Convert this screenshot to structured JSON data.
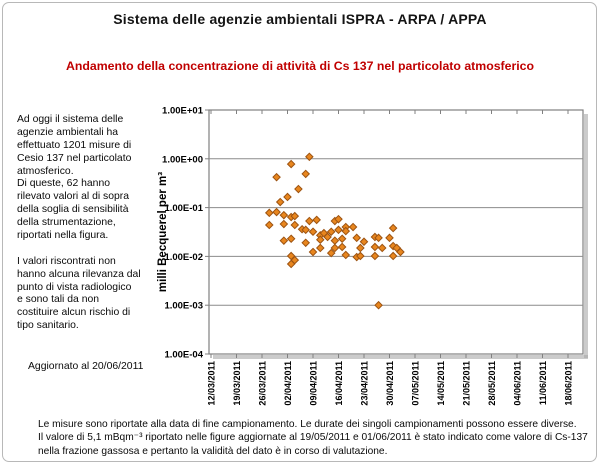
{
  "header": {
    "title": "Sistema delle agenzie ambientali ISPRA - ARPA / APPA",
    "subtitle": "Andamento della concentrazione di attività di Cs 137 nel particolato atmosferico",
    "subtitle_color": "#C00000"
  },
  "left_panel": {
    "body": "Ad oggi il sistema delle\nagenzie ambientali  ha\neffettuato 1201 misure di\nCesio 137 nel particolato\natmosferico.\nDi queste, 62 hanno\nrilevato valori al di sopra\ndella soglia di sensibilità\ndella strumentazione,\nriportati nella figura.\n\nI valori riscontrati  non\nhanno alcuna rilevanza dal\npunto di vista radiologico\ne sono tali da non\ncostituire alcun rischio di\ntipo sanitario.",
    "updated": "Aggiornato al 20/06/2011"
  },
  "footer": {
    "notes": "Le misure sono riportate alla data di fine campionamento. Le durate dei singoli campionamenti possono essere diverse.\nIl valore di 5,1 mBqm⁻³ riportato nelle figure aggiornate al 19/05/2011  e 01/06/2011  è stato indicato come valore di Cs-137\nnella frazione gassosa e pertanto la validità del dato è in corso di valutazione."
  },
  "chart_data": {
    "type": "scatter",
    "title": "",
    "xlabel": "",
    "ylabel": "milli Becquerel per m³",
    "y_scale": "log",
    "ylim": [
      0.0001,
      10
    ],
    "grid": "horizontal",
    "legend": "none",
    "y_ticks": [
      {
        "label": "1.00E+01",
        "value": 10
      },
      {
        "label": "1.00E+00",
        "value": 1
      },
      {
        "label": "1.00E-01",
        "value": 0.1
      },
      {
        "label": "1.00E-02",
        "value": 0.01
      },
      {
        "label": "1.00E-03",
        "value": 0.001
      },
      {
        "label": "1.00E-04",
        "value": 0.0001
      }
    ],
    "x_ticks": [
      "12/03/2011",
      "19/03/2011",
      "26/03/2011",
      "02/04/2011",
      "09/04/2011",
      "16/04/2011",
      "23/04/2011",
      "30/04/2011",
      "07/05/2011",
      "14/05/2011",
      "21/05/2011",
      "28/05/2011",
      "04/06/2011",
      "11/06/2011",
      "18/06/2011"
    ],
    "x_start_date": "12/03/2011",
    "marker": {
      "shape": "diamond",
      "fill": "#E8861E",
      "stroke": "#9C5312"
    },
    "points": [
      {
        "date": "30/03/2011",
        "value": 0.42
      },
      {
        "date": "03/04/2011",
        "value": 0.78
      },
      {
        "date": "08/04/2011",
        "value": 1.1
      },
      {
        "date": "07/04/2011",
        "value": 0.49
      },
      {
        "date": "05/04/2011",
        "value": 0.24
      },
      {
        "date": "02/04/2011",
        "value": 0.165
      },
      {
        "date": "28/03/2011",
        "value": 0.078
      },
      {
        "date": "30/03/2011",
        "value": 0.081
      },
      {
        "date": "31/03/2011",
        "value": 0.13
      },
      {
        "date": "01/04/2011",
        "value": 0.07
      },
      {
        "date": "03/04/2011",
        "value": 0.064
      },
      {
        "date": "04/04/2011",
        "value": 0.067
      },
      {
        "date": "08/04/2011",
        "value": 0.053
      },
      {
        "date": "10/04/2011",
        "value": 0.056
      },
      {
        "date": "15/04/2011",
        "value": 0.053
      },
      {
        "date": "16/04/2011",
        "value": 0.058
      },
      {
        "date": "28/03/2011",
        "value": 0.044
      },
      {
        "date": "01/04/2011",
        "value": 0.046
      },
      {
        "date": "04/04/2011",
        "value": 0.044
      },
      {
        "date": "06/04/2011",
        "value": 0.036
      },
      {
        "date": "07/04/2011",
        "value": 0.035
      },
      {
        "date": "09/04/2011",
        "value": 0.032
      },
      {
        "date": "11/04/2011",
        "value": 0.027
      },
      {
        "date": "12/04/2011",
        "value": 0.03
      },
      {
        "date": "14/04/2011",
        "value": 0.032
      },
      {
        "date": "16/04/2011",
        "value": 0.035
      },
      {
        "date": "18/04/2011",
        "value": 0.04
      },
      {
        "date": "01/04/2011",
        "value": 0.021
      },
      {
        "date": "03/04/2011",
        "value": 0.023
      },
      {
        "date": "07/04/2011",
        "value": 0.019
      },
      {
        "date": "11/04/2011",
        "value": 0.022
      },
      {
        "date": "15/04/2011",
        "value": 0.021
      },
      {
        "date": "17/04/2011",
        "value": 0.023
      },
      {
        "date": "11/04/2011",
        "value": 0.0149
      },
      {
        "date": "15/04/2011",
        "value": 0.0149
      },
      {
        "date": "17/04/2011",
        "value": 0.0156
      },
      {
        "date": "03/04/2011",
        "value": 0.0102
      },
      {
        "date": "04/04/2011",
        "value": 0.0084
      },
      {
        "date": "03/04/2011",
        "value": 0.007
      },
      {
        "date": "09/04/2011",
        "value": 0.0123
      },
      {
        "date": "14/04/2011",
        "value": 0.0117
      },
      {
        "date": "13/04/2011",
        "value": 0.025
      },
      {
        "date": "20/04/2011",
        "value": 0.04
      },
      {
        "date": "18/04/2011",
        "value": 0.033
      },
      {
        "date": "21/04/2011",
        "value": 0.024
      },
      {
        "date": "23/04/2011",
        "value": 0.02
      },
      {
        "date": "22/04/2011",
        "value": 0.0149
      },
      {
        "date": "18/04/2011",
        "value": 0.0107
      },
      {
        "date": "21/04/2011",
        "value": 0.0097
      },
      {
        "date": "22/04/2011",
        "value": 0.0102
      },
      {
        "date": "26/04/2011",
        "value": 0.025
      },
      {
        "date": "27/04/2011",
        "value": 0.024
      },
      {
        "date": "26/04/2011",
        "value": 0.0156
      },
      {
        "date": "28/04/2011",
        "value": 0.0149
      },
      {
        "date": "26/04/2011",
        "value": 0.0102
      },
      {
        "date": "01/05/2011",
        "value": 0.038
      },
      {
        "date": "30/04/2011",
        "value": 0.024
      },
      {
        "date": "01/05/2011",
        "value": 0.0163
      },
      {
        "date": "02/05/2011",
        "value": 0.0149
      },
      {
        "date": "01/05/2011",
        "value": 0.0102
      },
      {
        "date": "03/05/2011",
        "value": 0.0123
      },
      {
        "date": "27/04/2011",
        "value": 0.001
      }
    ]
  }
}
